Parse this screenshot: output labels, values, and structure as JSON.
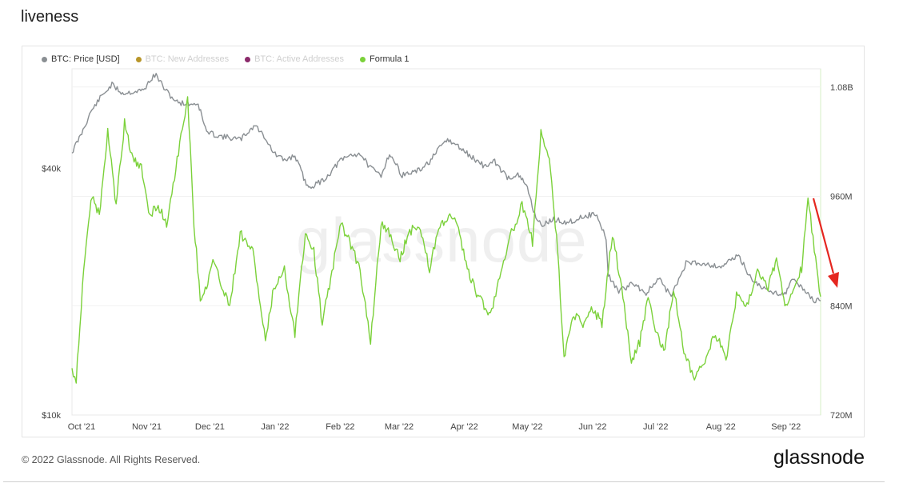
{
  "page": {
    "title": "liveness"
  },
  "legend": [
    {
      "label": "BTC: Price [USD]",
      "color": "#8a8f93",
      "active": true
    },
    {
      "label": "BTC: New Addresses",
      "color": "#b8962a",
      "active": false
    },
    {
      "label": "BTC: Active Addresses",
      "color": "#8b2a6b",
      "active": false
    },
    {
      "label": "Formula 1",
      "color": "#7bd13a",
      "active": true
    }
  ],
  "watermark": "glassnode",
  "footer": {
    "copyright": "© 2022 Glassnode. All Rights Reserved.",
    "logo": "glassnode"
  },
  "chart_data": {
    "type": "line",
    "x_ticks": [
      "Oct '21",
      "Nov '21",
      "Dec '21",
      "Jan '22",
      "Feb '22",
      "Mar '22",
      "Apr '22",
      "May '22",
      "Jun '22",
      "Jul '22",
      "Aug '22",
      "Sep '22"
    ],
    "y_left_ticks": [
      "$40k",
      "$10k"
    ],
    "y_left_scale": "log",
    "y_left_range": [
      10000,
      70000
    ],
    "y_right_ticks": [
      "1.08B",
      "960M",
      "840M",
      "720M"
    ],
    "y_right_range": [
      720000000,
      1100000000
    ],
    "x_range": [
      "2021-10-01",
      "2022-09-22"
    ],
    "grid": true,
    "legend_position": "top-left",
    "annotation": {
      "type": "red-arrow",
      "direction": "down",
      "color": "#e5261f"
    },
    "series": [
      {
        "name": "BTC: Price [USD]",
        "axis": "left",
        "color": "#8a8f93",
        "x": [
          "2021-10-01",
          "2021-10-05",
          "2021-10-10",
          "2021-10-15",
          "2021-10-20",
          "2021-10-25",
          "2021-10-30",
          "2021-11-04",
          "2021-11-08",
          "2021-11-10",
          "2021-11-15",
          "2021-11-20",
          "2021-11-25",
          "2021-11-30",
          "2021-12-04",
          "2021-12-10",
          "2021-12-15",
          "2021-12-20",
          "2021-12-27",
          "2022-01-01",
          "2022-01-05",
          "2022-01-10",
          "2022-01-15",
          "2022-01-21",
          "2022-01-25",
          "2022-01-30",
          "2022-02-05",
          "2022-02-10",
          "2022-02-15",
          "2022-02-20",
          "2022-02-25",
          "2022-03-01",
          "2022-03-07",
          "2022-03-15",
          "2022-03-20",
          "2022-03-28",
          "2022-04-02",
          "2022-04-08",
          "2022-04-15",
          "2022-04-20",
          "2022-04-26",
          "2022-05-01",
          "2022-05-05",
          "2022-05-09",
          "2022-05-12",
          "2022-05-18",
          "2022-05-25",
          "2022-06-01",
          "2022-06-07",
          "2022-06-12",
          "2022-06-13",
          "2022-06-18",
          "2022-06-25",
          "2022-07-01",
          "2022-07-07",
          "2022-07-13",
          "2022-07-20",
          "2022-07-28",
          "2022-08-05",
          "2022-08-14",
          "2022-08-20",
          "2022-08-28",
          "2022-09-05",
          "2022-09-09",
          "2022-09-13",
          "2022-09-19",
          "2022-09-22"
        ],
        "y": [
          43800,
          48000,
          55000,
          60000,
          64000,
          61000,
          61500,
          62000,
          66500,
          67500,
          61500,
          58000,
          57500,
          57500,
          49000,
          48000,
          47500,
          47000,
          51000,
          47500,
          43500,
          41800,
          43000,
          36000,
          36500,
          38000,
          41500,
          43000,
          43500,
          40000,
          38500,
          43500,
          38500,
          39500,
          41500,
          47000,
          45500,
          43000,
          40500,
          41500,
          38000,
          38500,
          36500,
          31000,
          29000,
          30000,
          29500,
          30500,
          31000,
          27000,
          22000,
          20000,
          21000,
          19800,
          21500,
          19500,
          23500,
          23500,
          23000,
          24500,
          21500,
          20000,
          19800,
          21500,
          20500,
          19000,
          19000
        ]
      },
      {
        "name": "Formula 1",
        "axis": "right",
        "color": "#7bd13a",
        "x": [
          "2021-10-01",
          "2021-10-03",
          "2021-10-06",
          "2021-10-10",
          "2021-10-14",
          "2021-10-18",
          "2021-10-22",
          "2021-10-26",
          "2021-10-30",
          "2021-11-03",
          "2021-11-07",
          "2021-11-11",
          "2021-11-15",
          "2021-11-20",
          "2021-11-25",
          "2021-11-28",
          "2021-12-01",
          "2021-12-04",
          "2021-12-07",
          "2021-12-10",
          "2021-12-15",
          "2021-12-20",
          "2021-12-26",
          "2022-01-01",
          "2022-01-05",
          "2022-01-10",
          "2022-01-15",
          "2022-01-20",
          "2022-01-24",
          "2022-01-28",
          "2022-02-01",
          "2022-02-06",
          "2022-02-10",
          "2022-02-15",
          "2022-02-20",
          "2022-02-25",
          "2022-03-01",
          "2022-03-06",
          "2022-03-10",
          "2022-03-15",
          "2022-03-20",
          "2022-03-25",
          "2022-04-01",
          "2022-04-07",
          "2022-04-12",
          "2022-04-18",
          "2022-04-23",
          "2022-04-28",
          "2022-05-03",
          "2022-05-08",
          "2022-05-12",
          "2022-05-16",
          "2022-05-20",
          "2022-05-23",
          "2022-05-27",
          "2022-06-01",
          "2022-06-05",
          "2022-06-10",
          "2022-06-15",
          "2022-06-20",
          "2022-06-24",
          "2022-06-28",
          "2022-07-02",
          "2022-07-06",
          "2022-07-10",
          "2022-07-14",
          "2022-07-19",
          "2022-07-24",
          "2022-07-29",
          "2022-08-03",
          "2022-08-08",
          "2022-08-13",
          "2022-08-18",
          "2022-08-23",
          "2022-08-28",
          "2022-09-01",
          "2022-09-05",
          "2022-09-09",
          "2022-09-13",
          "2022-09-16",
          "2022-09-19",
          "2022-09-22"
        ],
        "y": [
          770000000,
          760000000,
          860000000,
          960000000,
          940000000,
          1030000000,
          950000000,
          1040000000,
          1000000000,
          990000000,
          940000000,
          950000000,
          930000000,
          1000000000,
          1070000000,
          930000000,
          850000000,
          860000000,
          890000000,
          870000000,
          840000000,
          920000000,
          900000000,
          800000000,
          860000000,
          880000000,
          810000000,
          920000000,
          900000000,
          820000000,
          870000000,
          930000000,
          910000000,
          880000000,
          800000000,
          930000000,
          920000000,
          890000000,
          920000000,
          930000000,
          880000000,
          930000000,
          940000000,
          880000000,
          850000000,
          830000000,
          880000000,
          920000000,
          950000000,
          910000000,
          1030000000,
          1000000000,
          900000000,
          780000000,
          830000000,
          820000000,
          840000000,
          820000000,
          920000000,
          850000000,
          780000000,
          800000000,
          850000000,
          810000000,
          790000000,
          860000000,
          790000000,
          760000000,
          780000000,
          810000000,
          780000000,
          850000000,
          840000000,
          880000000,
          860000000,
          890000000,
          840000000,
          860000000,
          880000000,
          960000000,
          900000000,
          850000000
        ]
      }
    ]
  }
}
